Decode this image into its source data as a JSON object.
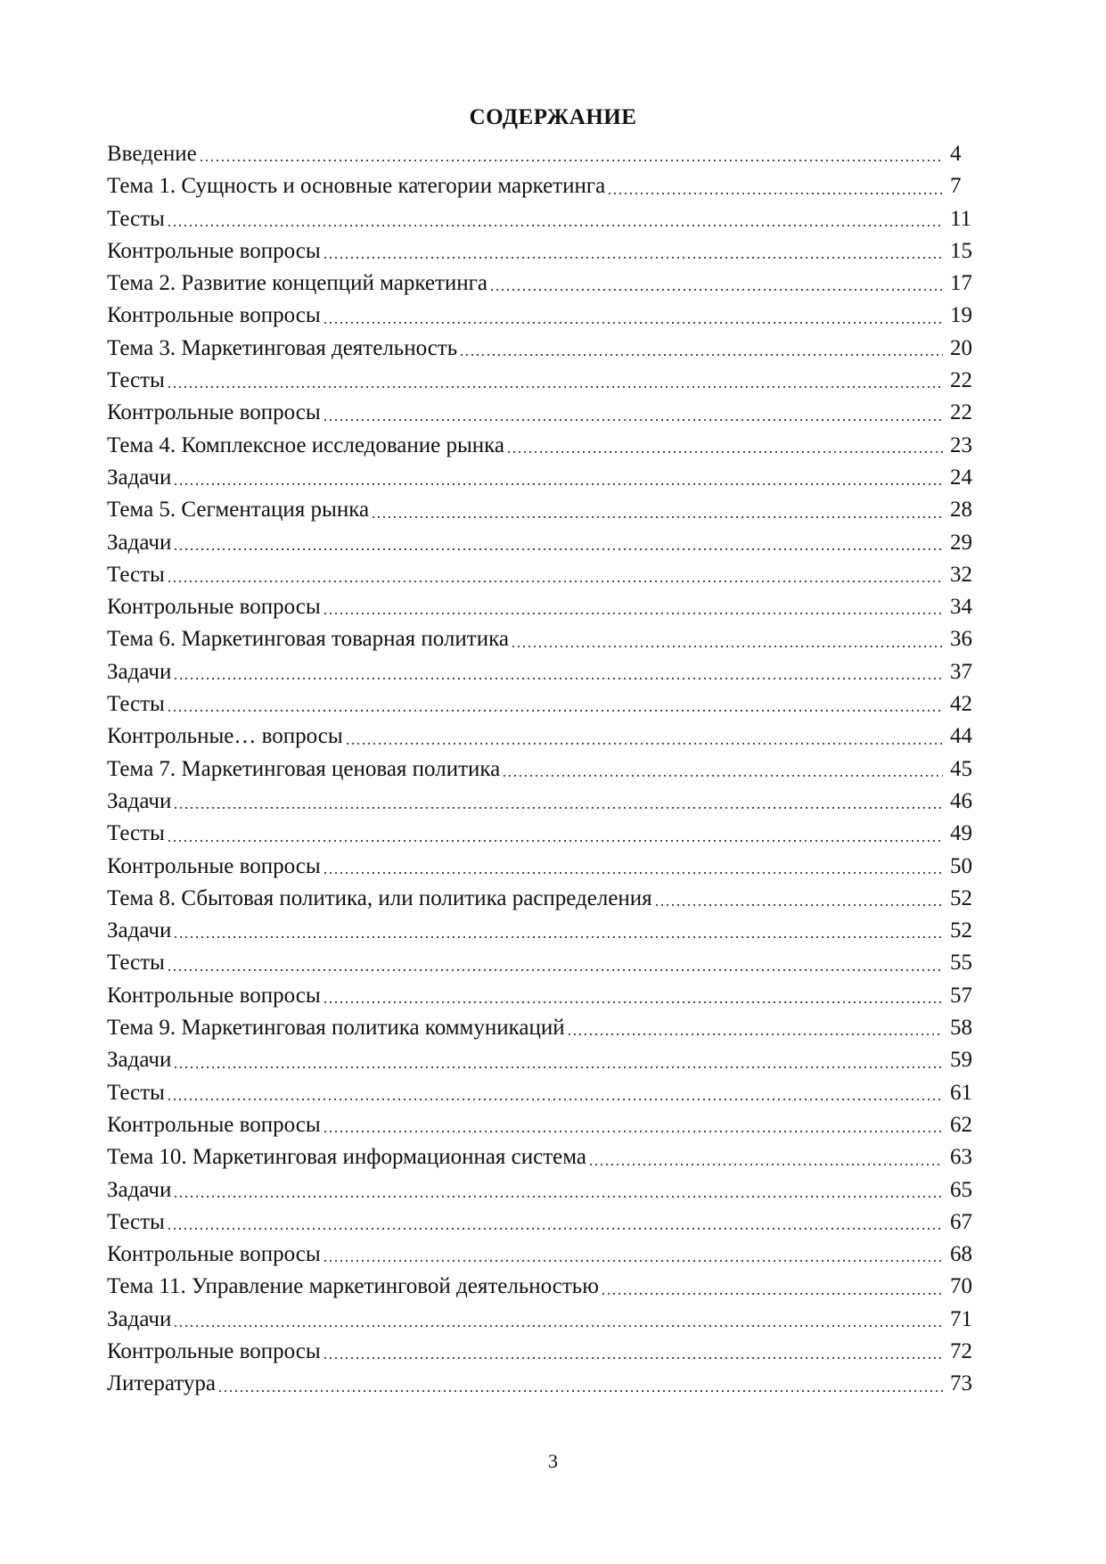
{
  "title": "СОДЕРЖАНИЕ",
  "entries": [
    {
      "label": "Введение",
      "page": "4"
    },
    {
      "label": "Тема 1. Сущность и основные категории маркетинга",
      "page": "7"
    },
    {
      "label": "Тесты",
      "page": "11"
    },
    {
      "label": "Контрольные вопросы",
      "page": "15"
    },
    {
      "label": "Тема 2. Развитие концепций маркетинга",
      "page": "17"
    },
    {
      "label": "Контрольные вопросы",
      "page": "19"
    },
    {
      "label": "Тема 3. Маркетинговая деятельность",
      "page": "20"
    },
    {
      "label": "Тесты",
      "page": "22"
    },
    {
      "label": "Контрольные вопросы",
      "page": "22"
    },
    {
      "label": "Тема 4. Комплексное исследование рынка",
      "page": "23"
    },
    {
      "label": "Задачи",
      "page": "24"
    },
    {
      "label": "Тема 5. Сегментация рынка",
      "page": "28"
    },
    {
      "label": "Задачи",
      "page": "29"
    },
    {
      "label": "Тесты",
      "page": "32"
    },
    {
      "label": "Контрольные вопросы",
      "page": "34"
    },
    {
      "label": "Тема 6. Маркетинговая товарная политика",
      "page": "36"
    },
    {
      "label": "Задачи",
      "page": "37"
    },
    {
      "label": "Тесты",
      "page": "42"
    },
    {
      "label": "Контрольные… вопросы",
      "page": "44"
    },
    {
      "label": "Тема 7. Маркетинговая ценовая политика",
      "page": "45"
    },
    {
      "label": "Задачи",
      "page": "46"
    },
    {
      "label": "Тесты",
      "page": "49"
    },
    {
      "label": "Контрольные вопросы",
      "page": "50"
    },
    {
      "label": "Тема 8. Сбытовая политика, или политика распределения",
      "page": "52"
    },
    {
      "label": "Задачи",
      "page": "52"
    },
    {
      "label": "Тесты",
      "page": "55"
    },
    {
      "label": "Контрольные вопросы",
      "page": "57"
    },
    {
      "label": "Тема 9. Маркетинговая политика коммуникаций",
      "page": "58"
    },
    {
      "label": "Задачи",
      "page": "59"
    },
    {
      "label": "Тесты",
      "page": "61"
    },
    {
      "label": "Контрольные вопросы",
      "page": "62"
    },
    {
      "label": "Тема 10. Маркетинговая информационная система",
      "page": "63"
    },
    {
      "label": "Задачи",
      "page": "65"
    },
    {
      "label": "Тесты",
      "page": "67"
    },
    {
      "label": "Контрольные вопросы",
      "page": "68"
    },
    {
      "label": "Тема 11. Управление маркетинговой деятельностью",
      "page": "70"
    },
    {
      "label": "Задачи",
      "page": "71"
    },
    {
      "label": "Контрольные вопросы",
      "page": "72"
    },
    {
      "label": "Литература",
      "page": "73"
    }
  ],
  "page_number": "3"
}
